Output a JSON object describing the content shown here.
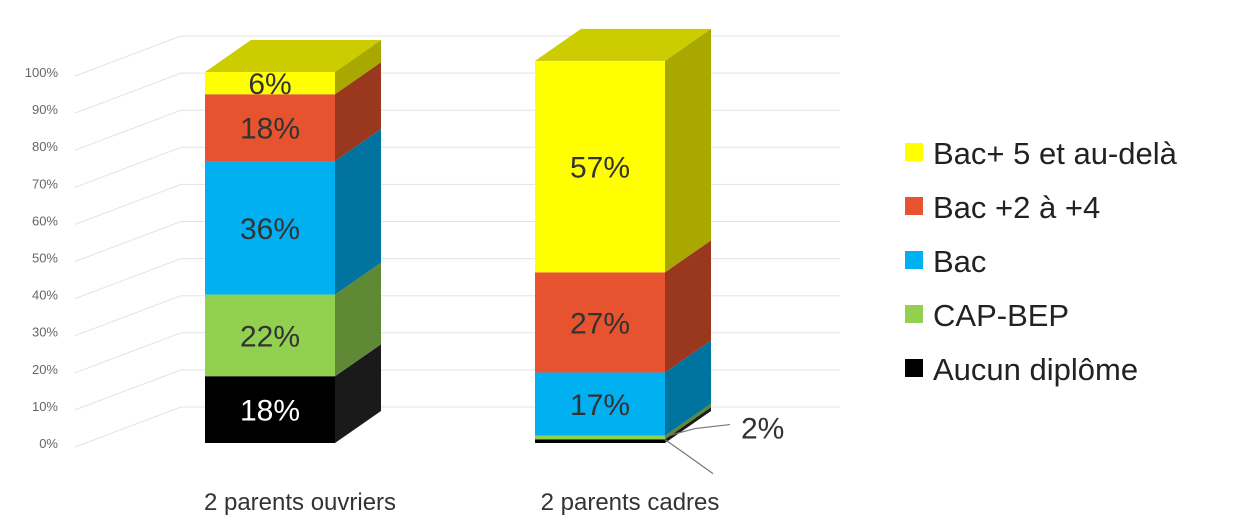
{
  "chart_data": {
    "type": "bar",
    "stacked": true,
    "three_d": true,
    "ylim": [
      0,
      100
    ],
    "yticks": [
      "0%",
      "10%",
      "20%",
      "30%",
      "40%",
      "50%",
      "60%",
      "70%",
      "80%",
      "90%",
      "100%"
    ],
    "categories": [
      "2 parents ouvriers",
      "2 parents cadres"
    ],
    "series": [
      {
        "name": "Aucun diplôme",
        "values": [
          18,
          1
        ],
        "labels": [
          "18%",
          ""
        ],
        "color": "#000000"
      },
      {
        "name": "CAP-BEP",
        "values": [
          22,
          1
        ],
        "labels": [
          "22%",
          ""
        ],
        "color": "#92D050"
      },
      {
        "name": "Bac",
        "values": [
          36,
          17
        ],
        "labels": [
          "36%",
          "17%"
        ],
        "color": "#00B0F0"
      },
      {
        "name": "Bac +2 à +4",
        "values": [
          18,
          27
        ],
        "labels": [
          "18%",
          "27%"
        ],
        "color": "#E8532F"
      },
      {
        "name": "Bac+ 5 et au-delà",
        "values": [
          6,
          57
        ],
        "labels": [
          "6%",
          "57%"
        ],
        "color": "#FFFF00"
      }
    ],
    "annotations": [
      {
        "text": "2%",
        "category": "2 parents cadres",
        "refers_to": [
          "Aucun diplôme",
          "CAP-BEP"
        ]
      }
    ],
    "legend": {
      "position": "right",
      "order": [
        "Bac+ 5 et au-delà",
        "Bac +2 à +4",
        "Bac",
        "CAP-BEP",
        "Aucun diplôme"
      ]
    },
    "grid": true
  }
}
